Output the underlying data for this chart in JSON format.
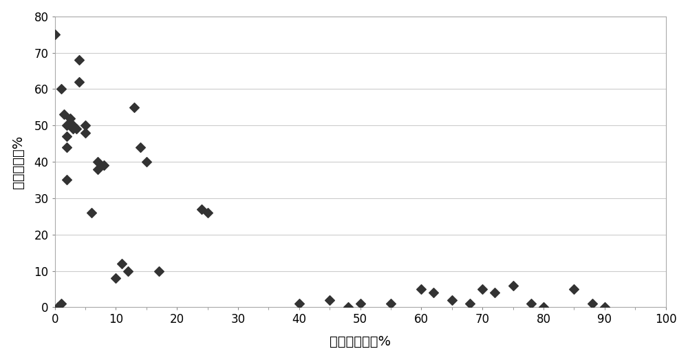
{
  "x": [
    0,
    0.5,
    1,
    1,
    1.5,
    2,
    2,
    2,
    2,
    2.5,
    3,
    3,
    3.5,
    4,
    4,
    5,
    5,
    6,
    7,
    7,
    8,
    10,
    11,
    12,
    13,
    14,
    15,
    17,
    24,
    25,
    40,
    45,
    48,
    50,
    55,
    60,
    62,
    65,
    68,
    70,
    72,
    75,
    78,
    80,
    85,
    88,
    90
  ],
  "y": [
    75,
    0,
    60,
    1,
    53,
    50,
    47,
    44,
    35,
    52,
    50,
    49,
    49,
    62,
    68,
    48,
    50,
    26,
    40,
    38,
    39,
    8,
    12,
    10,
    55,
    44,
    40,
    10,
    27,
    26,
    1,
    2,
    0,
    1,
    1,
    5,
    4,
    2,
    1,
    5,
    4,
    6,
    1,
    0,
    5,
    1,
    0
  ],
  "xlabel": "乃化稳定性，%",
  "ylabel": "渗吸效率，%",
  "xlim": [
    0,
    100
  ],
  "ylim": [
    0,
    80
  ],
  "xticks": [
    0,
    10,
    20,
    30,
    40,
    50,
    60,
    70,
    80,
    90,
    100
  ],
  "yticks": [
    0,
    10,
    20,
    30,
    40,
    50,
    60,
    70,
    80
  ],
  "marker_color": "#333333",
  "marker_size": 7,
  "bg_color": "#ffffff",
  "grid_color": "#cccccc",
  "tick_fontsize": 12,
  "label_fontsize": 14
}
